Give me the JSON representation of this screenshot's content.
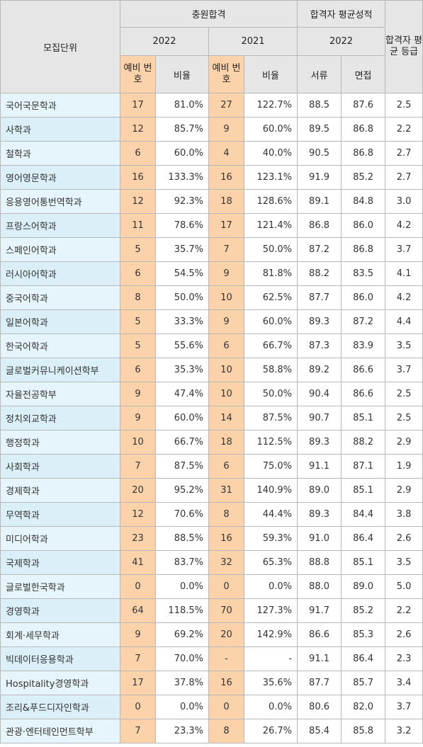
{
  "headers": {
    "unit": "모집단위",
    "additional": "충원합격",
    "avg_score": "합격자 평균성적",
    "year_2022": "2022",
    "year_2021": "2021",
    "year_2022b": "2022",
    "grade": "합격자 평균 등급",
    "wait_no_2022": "예비 번호",
    "ratio_2022": "비율",
    "wait_no_2021": "예비 번호",
    "ratio_2021": "비율",
    "docs": "서류",
    "interview": "면접"
  },
  "rows": [
    [
      "국어국문학과",
      "17",
      "81.0%",
      "27",
      "122.7%",
      "88.5",
      "87.6",
      "2.5"
    ],
    [
      "사학과",
      "12",
      "85.7%",
      "9",
      "60.0%",
      "89.5",
      "86.8",
      "2.2"
    ],
    [
      "철학과",
      "6",
      "60.0%",
      "4",
      "40.0%",
      "90.5",
      "86.8",
      "2.7"
    ],
    [
      "영어영문학과",
      "16",
      "133.3%",
      "16",
      "123.1%",
      "91.9",
      "85.2",
      "2.7"
    ],
    [
      "응용영어통번역학과",
      "12",
      "92.3%",
      "18",
      "128.6%",
      "89.1",
      "84.8",
      "3.0"
    ],
    [
      "프랑스어학과",
      "11",
      "78.6%",
      "17",
      "121.4%",
      "86.8",
      "86.0",
      "4.2"
    ],
    [
      "스페인어학과",
      "5",
      "35.7%",
      "7",
      "50.0%",
      "87.2",
      "86.8",
      "3.7"
    ],
    [
      "러시아어학과",
      "6",
      "54.5%",
      "9",
      "81.8%",
      "88.2",
      "83.5",
      "4.1"
    ],
    [
      "중국어학과",
      "8",
      "50.0%",
      "10",
      "62.5%",
      "87.7",
      "86.0",
      "4.2"
    ],
    [
      "일본어학과",
      "5",
      "33.3%",
      "9",
      "60.0%",
      "89.3",
      "87.2",
      "4.4"
    ],
    [
      "한국어학과",
      "5",
      "55.6%",
      "6",
      "66.7%",
      "87.3",
      "83.9",
      "3.5"
    ],
    [
      "글로벌커뮤니케이션학부",
      "6",
      "35.3%",
      "10",
      "58.8%",
      "89.2",
      "86.6",
      "3.7"
    ],
    [
      "자율전공학부",
      "9",
      "47.4%",
      "10",
      "50.0%",
      "90.4",
      "86.6",
      "2.5"
    ],
    [
      "정치외교학과",
      "9",
      "60.0%",
      "14",
      "87.5%",
      "90.7",
      "85.1",
      "2.5"
    ],
    [
      "행정학과",
      "10",
      "66.7%",
      "18",
      "112.5%",
      "89.3",
      "88.2",
      "2.9"
    ],
    [
      "사회학과",
      "7",
      "87.5%",
      "6",
      "75.0%",
      "91.1",
      "87.1",
      "1.9"
    ],
    [
      "경제학과",
      "20",
      "95.2%",
      "31",
      "140.9%",
      "89.0",
      "85.1",
      "2.9"
    ],
    [
      "무역학과",
      "12",
      "70.6%",
      "8",
      "44.4%",
      "89.3",
      "84.4",
      "3.8"
    ],
    [
      "미디어학과",
      "23",
      "88.5%",
      "16",
      "59.3%",
      "91.0",
      "86.4",
      "2.6"
    ],
    [
      "국제학과",
      "41",
      "83.7%",
      "32",
      "65.3%",
      "88.8",
      "85.1",
      "3.5"
    ],
    [
      "글로벌한국학과",
      "0",
      "0.0%",
      "0",
      "0.0%",
      "88.0",
      "89.0",
      "5.0"
    ],
    [
      "경영학과",
      "64",
      "118.5%",
      "70",
      "127.3%",
      "91.7",
      "85.2",
      "2.2"
    ],
    [
      "회계·세무학과",
      "9",
      "69.2%",
      "20",
      "142.9%",
      "86.6",
      "85.3",
      "2.6"
    ],
    [
      "빅데이터응용학과",
      "7",
      "70.0%",
      "-",
      "-",
      "91.1",
      "86.4",
      "2.3"
    ],
    [
      "Hospitality경영학과",
      "17",
      "37.8%",
      "16",
      "35.6%",
      "87.7",
      "85.7",
      "3.4"
    ],
    [
      "조리&푸드디자인학과",
      "0",
      "0.0%",
      "0",
      "0.0%",
      "80.6",
      "82.0",
      "3.7"
    ],
    [
      "관광·엔터테인먼트학부",
      "7",
      "23.3%",
      "8",
      "26.7%",
      "85.4",
      "85.8",
      "3.2"
    ]
  ]
}
